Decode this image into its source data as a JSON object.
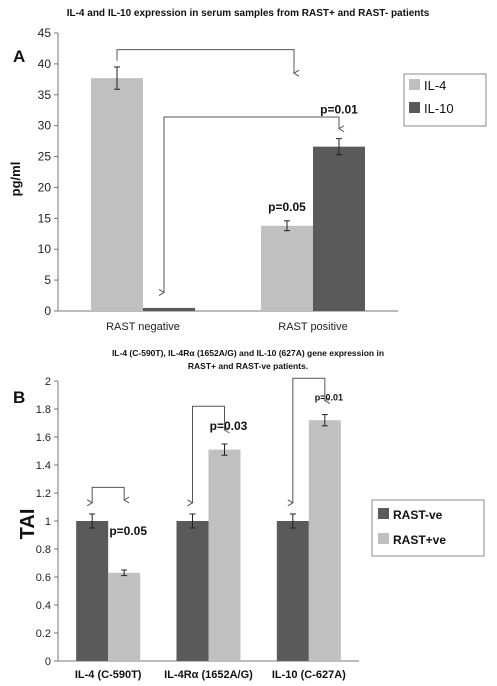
{
  "chart_data": [
    {
      "panel": "A",
      "type": "bar",
      "title": "IL-4 and IL-10 expression in serum  samples from  RAST+ and RAST- patients",
      "ylabel": "pg/ml",
      "xlabel": "",
      "ylim": [
        0,
        45
      ],
      "yticks": [
        "0",
        "5",
        "10",
        "15",
        "20",
        "25",
        "30",
        "35",
        "40",
        "45"
      ],
      "categories": [
        "RAST negative",
        "RAST positive"
      ],
      "series": [
        {
          "name": "IL-4",
          "values": [
            37.7,
            13.8
          ],
          "errors": [
            1.8,
            0.8
          ],
          "color": "#c0c0c0"
        },
        {
          "name": "IL-10",
          "values": [
            0.5,
            26.6
          ],
          "errors": [
            0.0,
            1.3
          ],
          "color": "#5a5a5a"
        }
      ],
      "annotations": [
        "p=0.05",
        "p=0.01"
      ],
      "legend": "right"
    },
    {
      "panel": "B",
      "type": "bar",
      "title_line1": "IL-4 (C-590T), IL-4Rα (1652A/G) and IL-10 (627A) gene expression in",
      "title_line2": "RAST+ and RAST-ve patients.",
      "ylabel": "TAI",
      "xlabel": "",
      "ylim": [
        0,
        2
      ],
      "yticks": [
        "0",
        "0.2",
        "0.4",
        "0.6",
        "0.8",
        "1",
        "1.2",
        "1.4",
        "1.6",
        "1.8",
        "2"
      ],
      "categories": [
        "IL-4 (C-590T)",
        "IL-4Rα (1652A/G)",
        "IL-10 (C-627A)"
      ],
      "series": [
        {
          "name": "RAST-ve",
          "values": [
            1.0,
            1.0,
            1.0
          ],
          "errors": [
            0.05,
            0.05,
            0.05
          ],
          "color": "#5a5a5a"
        },
        {
          "name": "RAST+ve",
          "values": [
            0.63,
            1.51,
            1.72
          ],
          "errors": [
            0.02,
            0.04,
            0.04
          ],
          "color": "#c0c0c0"
        }
      ],
      "annotations": [
        "p=0.05",
        "p=0.03",
        "p=0.01"
      ],
      "legend": "right"
    }
  ],
  "panel_labels": [
    "A",
    "B"
  ]
}
